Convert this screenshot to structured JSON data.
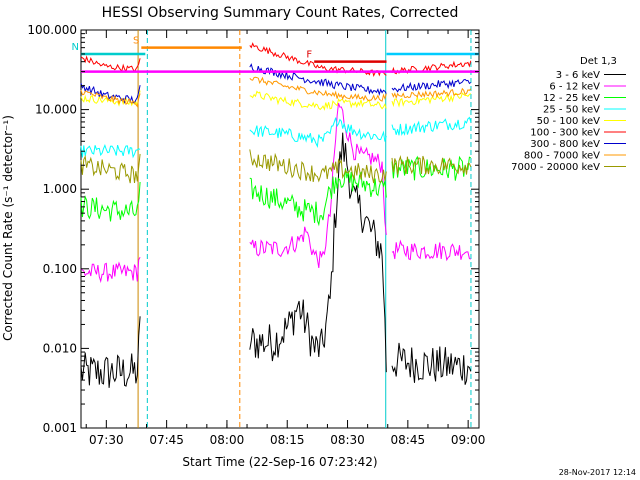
{
  "chart_data": {
    "type": "line",
    "title": "HESSI Observing Summary Count Rates, Corrected",
    "xlabel": "Start Time (22-Sep-16 07:23:42)",
    "ylabel": "Corrected Count Rate (s⁻¹ detector⁻¹)",
    "y_scale": "log",
    "ylim": [
      0.001,
      100
    ],
    "xlim_minutes": [
      0,
      99
    ],
    "x_ticks": [
      {
        "label": "07:30",
        "minute": 6.3
      },
      {
        "label": "07:45",
        "minute": 21.3
      },
      {
        "label": "08:00",
        "minute": 36.3
      },
      {
        "label": "08:15",
        "minute": 51.3
      },
      {
        "label": "08:30",
        "minute": 66.3
      },
      {
        "label": "08:45",
        "minute": 81.3
      },
      {
        "label": "09:00",
        "minute": 96.3
      }
    ],
    "y_ticks": [
      {
        "label": "0.001",
        "value": 0.001
      },
      {
        "label": "0.010",
        "value": 0.01
      },
      {
        "label": "0.100",
        "value": 0.1
      },
      {
        "label": "1.000",
        "value": 1
      },
      {
        "label": "10.000",
        "value": 10
      },
      {
        "label": "100.000",
        "value": 100
      }
    ],
    "legend_title": "Det 1,3",
    "legend_position": "right",
    "grid": false,
    "gaps_minutes": [
      [
        15.0,
        41.7
      ],
      [
        76.0,
        77.0
      ]
    ],
    "series": [
      {
        "name": "3 - 6 keV",
        "color": "#000000",
        "x": [
          0,
          14,
          15,
          42,
          48,
          52,
          54,
          56,
          58,
          60,
          62,
          63,
          64,
          65,
          66,
          67,
          68,
          70,
          72,
          74,
          75,
          76,
          77,
          90,
          96
        ],
        "y": [
          0.005,
          0.005,
          0.03,
          0.012,
          0.012,
          0.02,
          0.035,
          0.02,
          0.01,
          0.01,
          0.04,
          0.3,
          1.5,
          3.5,
          2.5,
          1.2,
          0.7,
          0.5,
          0.3,
          0.2,
          0.15,
          0.005,
          0.007,
          0.006,
          0.006
        ]
      },
      {
        "name": "6 - 12 keV",
        "color": "#ff00ff",
        "x": [
          0,
          14,
          15,
          42,
          50,
          54,
          56,
          58,
          60,
          62,
          63,
          64,
          65,
          66,
          67,
          68,
          70,
          72,
          74,
          75,
          76,
          77,
          90,
          96
        ],
        "y": [
          0.09,
          0.09,
          0.2,
          0.18,
          0.18,
          0.22,
          0.3,
          0.15,
          0.12,
          0.5,
          2.5,
          12,
          9,
          6,
          4,
          3,
          2.5,
          2.5,
          2.2,
          2,
          0.18,
          0.17,
          0.17,
          0.17
        ]
      },
      {
        "name": "12 - 25 keV",
        "color": "#00ff00",
        "x": [
          0,
          14,
          15,
          42,
          50,
          55,
          60,
          62,
          64,
          66,
          70,
          75,
          76,
          77,
          96
        ],
        "y": [
          0.6,
          0.5,
          1.2,
          1.0,
          0.7,
          0.55,
          0.5,
          1.0,
          1.5,
          1.3,
          1.2,
          1.0,
          1.0,
          1.8,
          1.8
        ]
      },
      {
        "name": "25 - 50 keV",
        "color": "#00ffff",
        "x": [
          0,
          14,
          15,
          42,
          50,
          55,
          60,
          62,
          64,
          66,
          70,
          75,
          76,
          77,
          90,
          96
        ],
        "y": [
          3.0,
          3.0,
          4.0,
          5.5,
          5.0,
          4.5,
          4.0,
          5.0,
          8.0,
          6.0,
          5.0,
          4.5,
          4.5,
          5.5,
          6.5,
          7.0
        ]
      },
      {
        "name": "50 - 100 keV",
        "color": "#ffff00",
        "x": [
          0,
          14,
          15,
          42,
          50,
          60,
          64,
          70,
          75,
          77,
          90,
          96
        ],
        "y": [
          14,
          12,
          18,
          16,
          13,
          11,
          12,
          12,
          11,
          12,
          14,
          15
        ]
      },
      {
        "name": "100 - 300 keV",
        "color": "#ff0000",
        "x": [
          0,
          6,
          14,
          15,
          42,
          50,
          60,
          64,
          70,
          75,
          77,
          90,
          96
        ],
        "y": [
          45,
          35,
          32,
          48,
          65,
          48,
          33,
          32,
          30,
          28,
          30,
          35,
          38
        ]
      },
      {
        "name": "300 - 800 keV",
        "color": "#0000cc",
        "x": [
          0,
          6,
          14,
          15,
          42,
          50,
          60,
          64,
          70,
          75,
          77,
          90,
          96
        ],
        "y": [
          20,
          15,
          13,
          22,
          35,
          28,
          22,
          20,
          18,
          17,
          18,
          21,
          22
        ]
      },
      {
        "name": "800 - 7000 keV",
        "color": "#ff9900",
        "x": [
          0,
          6,
          14,
          15,
          42,
          50,
          60,
          64,
          70,
          75,
          77,
          90,
          96
        ],
        "y": [
          17,
          14,
          12,
          20,
          25,
          20,
          16,
          15,
          14,
          14,
          15,
          16,
          17
        ]
      },
      {
        "name": "7000 - 20000 keV",
        "color": "#999900",
        "x": [
          0,
          14,
          15,
          42,
          50,
          60,
          64,
          70,
          75,
          77,
          90,
          96
        ],
        "y": [
          2.0,
          1.5,
          2.5,
          2.5,
          2.0,
          1.5,
          1.8,
          1.6,
          1.5,
          2.0,
          2.0,
          2.0
        ]
      }
    ],
    "flags": [
      {
        "label": "S",
        "color": "#ff8800",
        "y": 60,
        "x_start": 15,
        "x_end": 40
      },
      {
        "label": "N",
        "color": "#00cccc",
        "y": 50,
        "x_start": 0,
        "x_end": 16
      },
      {
        "label": "F",
        "color": "#dd0000",
        "y": 40,
        "x_start": 58,
        "x_end": 76
      },
      {
        "label": "",
        "color": "#00ccff",
        "y": 50,
        "x_start": 76,
        "x_end": 99
      },
      {
        "label": "",
        "color": "#ff00ff",
        "y": 30,
        "x_start": 0,
        "x_end": 99
      }
    ],
    "vertical_markers": [
      {
        "minute": 14.2,
        "color": "#cc8800",
        "style": "solid"
      },
      {
        "minute": 16.5,
        "color": "#00cccc",
        "style": "dashed"
      },
      {
        "minute": 39.5,
        "color": "#ff8800",
        "style": "dashed"
      },
      {
        "minute": 75.8,
        "color": "#00cccc",
        "style": "solid"
      },
      {
        "minute": 97.0,
        "color": "#00cccc",
        "style": "dashed"
      }
    ],
    "timestamp": "28-Nov-2017 12:14"
  }
}
